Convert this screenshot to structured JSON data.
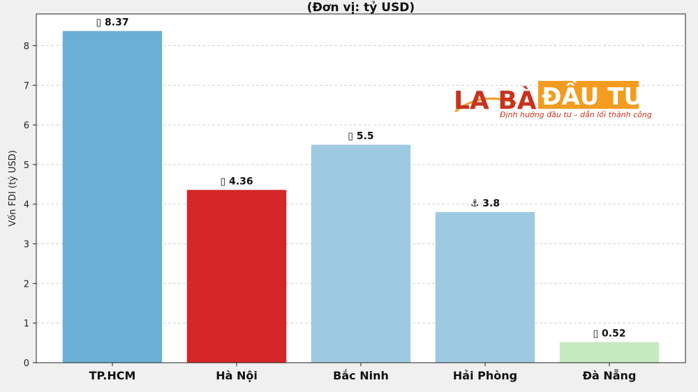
{
  "chart_data": {
    "type": "bar",
    "title": "(Đơn vị: tỷ USD)",
    "ylabel": "Vốn FDI (tỷ USD)",
    "xlabel": "",
    "categories": [
      "TP.HCM",
      "Hà Nội",
      "Bắc Ninh",
      "Hải Phòng",
      "Đà Nẵng"
    ],
    "values": [
      8.37,
      4.36,
      5.5,
      3.8,
      0.52
    ],
    "value_labels": [
      "▯ 8.37",
      "▯ 4.36",
      "▯ 5.5",
      "⚓ 3.8",
      "▯ 0.52"
    ],
    "colors": [
      "#6baed6",
      "#d62728",
      "#9ecae1",
      "#9ecae1",
      "#c7e9c0"
    ],
    "ylim": [
      0,
      8.8
    ],
    "yticks": [
      0,
      1,
      2,
      3,
      4,
      5,
      6,
      7,
      8
    ],
    "grid": true,
    "grid_axis": "y"
  },
  "watermark": {
    "brand_left": "LA BÀN",
    "brand_right": "ĐẦU TƯ",
    "tagline": "Định hướng đầu tư – dẫn lối thành công",
    "colors": {
      "red": "#c8321e",
      "orange": "#f39c1f"
    }
  }
}
